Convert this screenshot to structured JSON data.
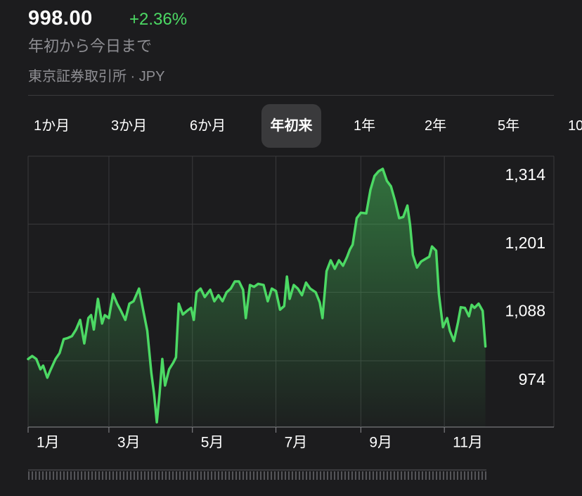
{
  "header": {
    "price": "998.00",
    "change": "+2.36%",
    "period": "年初から今日まで",
    "exchange": "東京証券取引所 · JPY"
  },
  "tabs": {
    "items": [
      "1か月",
      "3か月",
      "6か月",
      "年初来",
      "1年",
      "2年",
      "5年",
      "10"
    ],
    "selected": 3
  },
  "chart_data": {
    "type": "area",
    "color": "#4cd964",
    "grid": true,
    "x": [
      0,
      3,
      6,
      9,
      11,
      14,
      16,
      20,
      23,
      26,
      29,
      32,
      35,
      38,
      41,
      44,
      46,
      48,
      51,
      54,
      56,
      59,
      62,
      65,
      68,
      71,
      74,
      77,
      81,
      84,
      87,
      90,
      92,
      94,
      96,
      98,
      100,
      103,
      106,
      108,
      110,
      113,
      116,
      119,
      121,
      123,
      126,
      129,
      133,
      136,
      139,
      142,
      145,
      148,
      151,
      154,
      157,
      159,
      162,
      165,
      168,
      172,
      175,
      178,
      181,
      184,
      187,
      189,
      191,
      194,
      197,
      200,
      203,
      206,
      210,
      213,
      215,
      218,
      221,
      224,
      227,
      230,
      233,
      235,
      237,
      240,
      243,
      247,
      250,
      253,
      256,
      259,
      262,
      265,
      268,
      271,
      274,
      277,
      279,
      281,
      284,
      287,
      290,
      293,
      295,
      298,
      300,
      303,
      306,
      308,
      311,
      314,
      316,
      319,
      322,
      324,
      326,
      329,
      332,
      334
    ],
    "values": [
      977,
      982,
      977,
      960,
      966,
      946,
      957,
      977,
      987,
      1010,
      1012,
      1015,
      1026,
      1042,
      1003,
      1045,
      1050,
      1026,
      1077,
      1036,
      1050,
      1045,
      1085,
      1069,
      1056,
      1042,
      1069,
      1073,
      1094,
      1059,
      1024,
      954,
      919,
      872,
      919,
      977,
      933,
      960,
      971,
      980,
      1069,
      1051,
      1057,
      1062,
      1042,
      1088,
      1094,
      1080,
      1092,
      1073,
      1083,
      1073,
      1088,
      1094,
      1106,
      1106,
      1092,
      1045,
      1100,
      1097,
      1102,
      1100,
      1073,
      1094,
      1090,
      1059,
      1065,
      1114,
      1077,
      1100,
      1094,
      1083,
      1104,
      1094,
      1088,
      1071,
      1045,
      1123,
      1141,
      1127,
      1141,
      1132,
      1147,
      1159,
      1167,
      1211,
      1220,
      1219,
      1258,
      1281,
      1289,
      1293,
      1273,
      1264,
      1240,
      1211,
      1213,
      1232,
      1199,
      1150,
      1129,
      1139,
      1143,
      1147,
      1164,
      1157,
      1085,
      1030,
      1045,
      1024,
      1007,
      1038,
      1063,
      1062,
      1048,
      1067,
      1062,
      1069,
      1057,
      998
    ],
    "xlim": [
      0,
      384
    ],
    "xticks": [
      {
        "value": 0,
        "label": "1月"
      },
      {
        "value": 59,
        "label": "3月"
      },
      {
        "value": 120,
        "label": "5月"
      },
      {
        "value": 181,
        "label": "7月"
      },
      {
        "value": 243,
        "label": "9月"
      },
      {
        "value": 304,
        "label": "11月"
      }
    ],
    "ylim": [
      864,
      1314
    ],
    "yticks": [
      974,
      {
        "value": 1088,
        "label": "1,088"
      },
      {
        "value": 1201,
        "label": "1,201"
      },
      {
        "value": 1314,
        "label": "1,314"
      }
    ]
  }
}
